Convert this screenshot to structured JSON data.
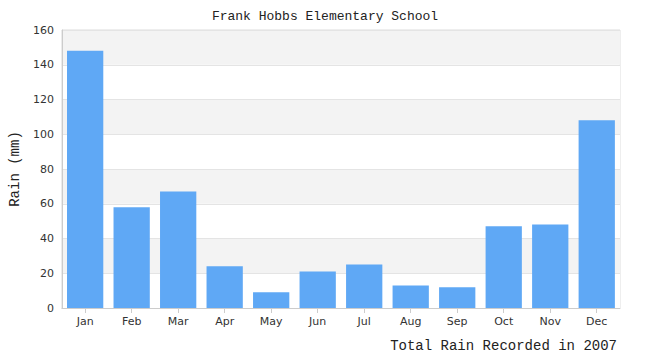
{
  "chart_data": {
    "type": "bar",
    "title": "Frank Hobbs Elementary School",
    "ylabel": "Rain (mm)",
    "xlabel": "Total Rain Recorded in 2007",
    "categories": [
      "Jan",
      "Feb",
      "Mar",
      "Apr",
      "May",
      "Jun",
      "Jul",
      "Aug",
      "Sep",
      "Oct",
      "Nov",
      "Dec"
    ],
    "values": [
      148,
      58,
      67,
      24,
      9,
      21,
      25,
      13,
      12,
      47,
      48,
      108
    ],
    "color": "#5fa8f5",
    "ylim": [
      0,
      160
    ],
    "yticks": [
      0,
      20,
      40,
      60,
      80,
      100,
      120,
      140,
      160
    ],
    "grid": true
  }
}
